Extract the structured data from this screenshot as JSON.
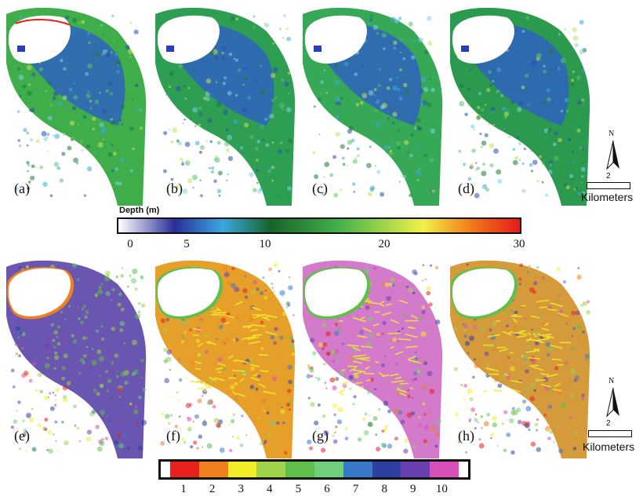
{
  "top_panels": [
    "(a)",
    "(b)",
    "(c)",
    "(d)"
  ],
  "bottom_panels": [
    "(e)",
    "(f)",
    "(g)",
    "(h)"
  ],
  "depth_colorbar": {
    "title": "Depth (m)",
    "ticks": [
      "0",
      "5",
      "10",
      "20",
      "30"
    ],
    "tick_values": [
      0,
      5,
      10,
      20,
      30
    ],
    "range": [
      0,
      30
    ],
    "colors": [
      "#ffffff",
      "#2a2f9a",
      "#3ba7e0",
      "#17642a",
      "#43b24a",
      "#f3f14a",
      "#f07a18",
      "#e81b1b"
    ]
  },
  "class_colorbar": {
    "ticks": [
      "1",
      "2",
      "3",
      "4",
      "5",
      "6",
      "7",
      "8",
      "9",
      "10"
    ],
    "colors": [
      "#e8201e",
      "#f0801e",
      "#f1ee27",
      "#9ed34a",
      "#5fbf4a",
      "#6fcf7a",
      "#3a79c9",
      "#2d3fa2",
      "#6a3fb0",
      "#d94fb8"
    ]
  },
  "scale_bar": {
    "number": "2",
    "units": "Kilometers",
    "north": "N"
  }
}
